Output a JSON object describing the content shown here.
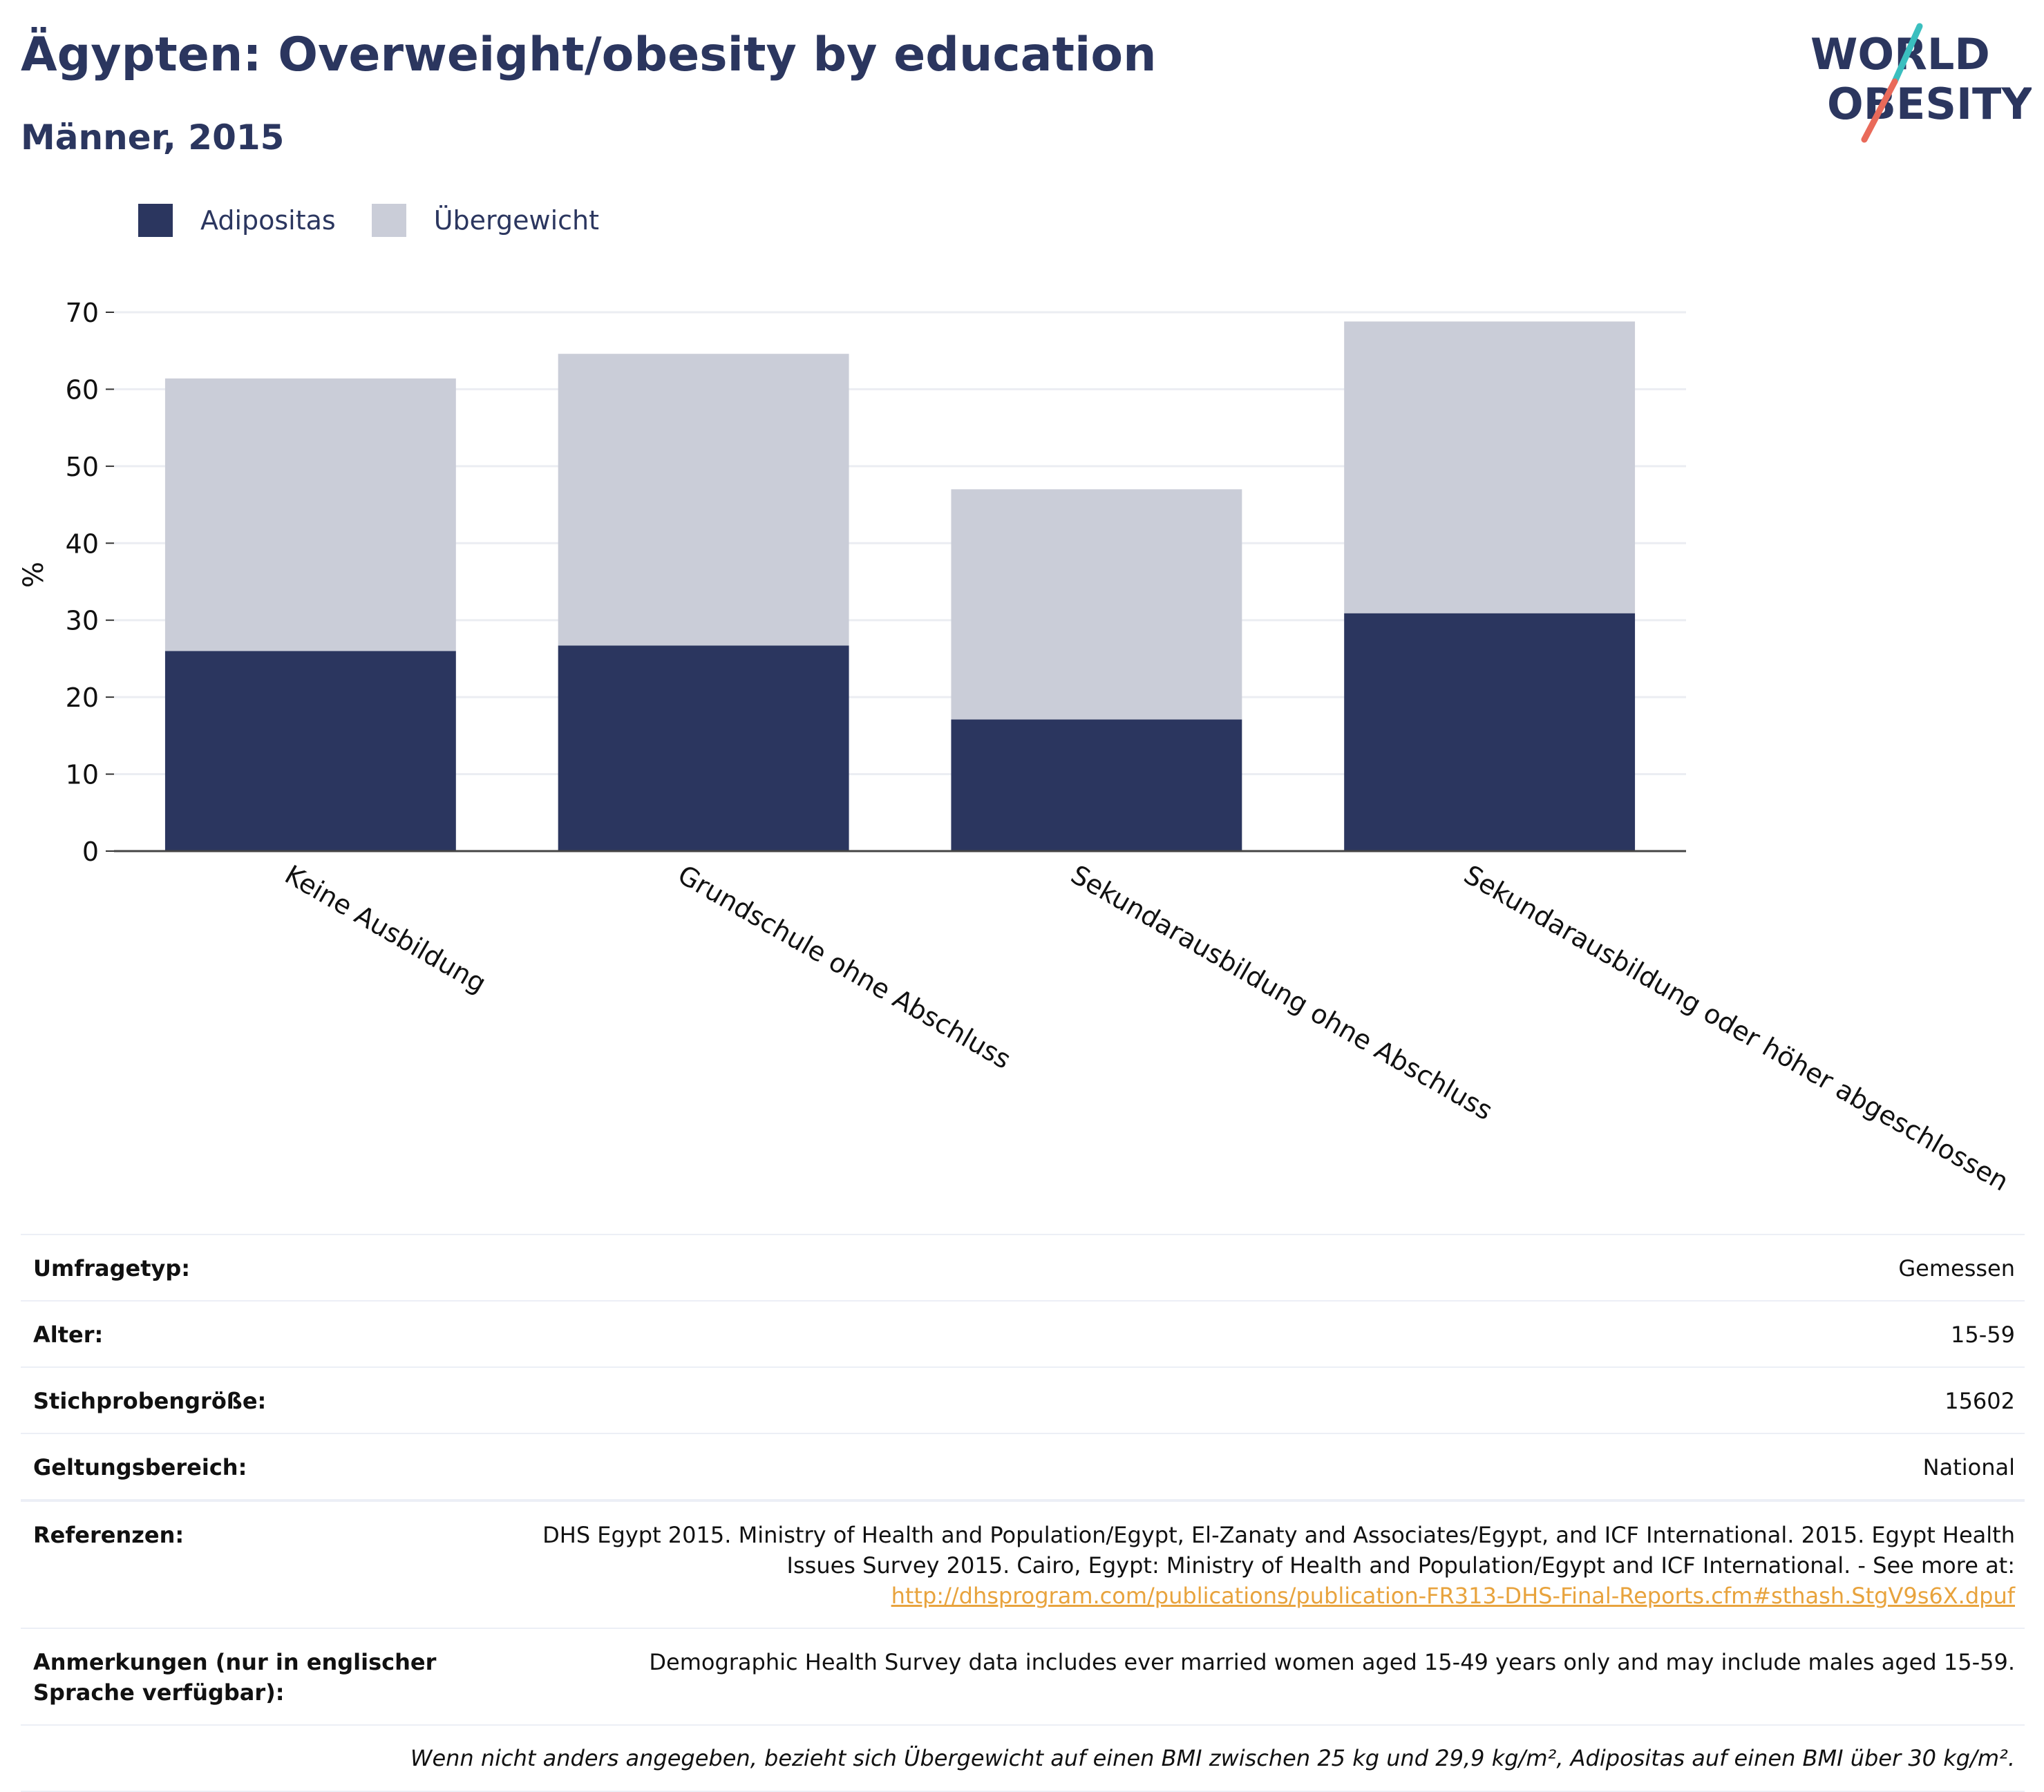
{
  "header": {
    "title": "Ägypten: Overweight/obesity by education",
    "subtitle": "Männer, 2015",
    "logo_text": [
      "WORLD",
      "OBESITY"
    ]
  },
  "colors": {
    "adipositas": "#2b365f",
    "uebergewicht": "#cacdd8",
    "text": "#2b365f",
    "logo_teal": "#3bbfbf",
    "logo_red": "#e96a5a",
    "link": "#e8a33d"
  },
  "chart_data": {
    "type": "bar",
    "stacked": true,
    "categories": [
      "Keine Ausbildung",
      "Grundschule ohne Abschluss",
      "Sekundarausbildung ohne Abschluss",
      "Sekundarausbildung oder höher abgeschlossen"
    ],
    "series": [
      {
        "name": "Adipositas",
        "values": [
          26.0,
          26.7,
          17.1,
          30.9
        ]
      },
      {
        "name": "Übergewicht",
        "values": [
          35.4,
          37.9,
          29.9,
          37.9
        ]
      }
    ],
    "totals": [
      61.4,
      64.6,
      47.0,
      68.8
    ],
    "title": "",
    "xlabel": "",
    "ylabel": "%",
    "ylim": [
      0,
      70
    ],
    "yticks": [
      0,
      10,
      20,
      30,
      40,
      50,
      60,
      70
    ],
    "grid": true,
    "legend_position": "top-left"
  },
  "meta": {
    "rows": [
      {
        "label": "Umfragetyp:",
        "value": "Gemessen"
      },
      {
        "label": "Alter:",
        "value": "15-59"
      },
      {
        "label": "Stichprobengröße:",
        "value": "15602"
      },
      {
        "label": "Geltungsbereich:",
        "value": "National"
      }
    ],
    "references": {
      "label": "Referenzen:",
      "text": "DHS Egypt 2015. Ministry of Health and Population/Egypt, El-Zanaty and Associates/Egypt, and ICF International. 2015. Egypt Health Issues Survey 2015. Cairo, Egypt: Ministry of Health and Population/Egypt and ICF International. - See more at:",
      "link": "http://dhsprogram.com/publications/publication-FR313-DHS-Final-Reports.cfm#sthash.StgV9s6X.dpuf"
    },
    "notes": {
      "label": "Anmerkungen (nur in englischer Sprache verfügbar):",
      "value": "Demographic Health Survey data includes ever married women aged 15-49 years only and may include males aged 15-59."
    },
    "footnote": "Wenn nicht anders angegeben, bezieht sich Übergewicht auf einen BMI zwischen 25 kg und 29,9 kg/m², Adipositas auf einen BMI über 30 kg/m²."
  }
}
